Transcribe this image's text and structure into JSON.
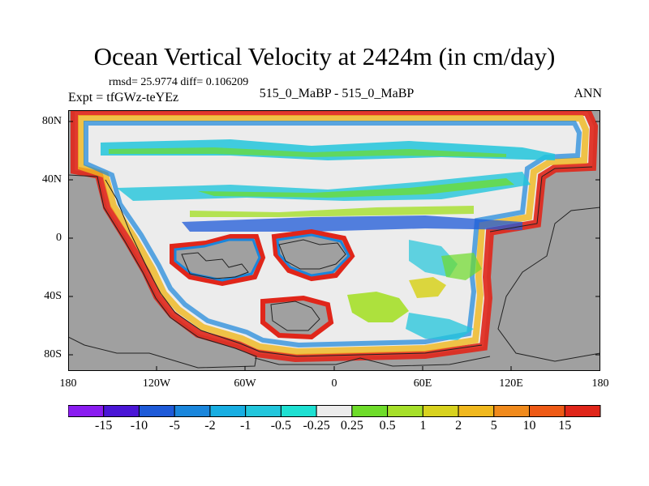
{
  "title": "Ocean Vertical Velocity at 2424m (in cm/day)",
  "stats": "rmsd= 25.9774 diff= 0.106209",
  "expt": "Expt = tfGWz-teYEz",
  "center_label": "515_0_MaBP - 515_0_MaBP",
  "season": "ANN",
  "y_ticks": [
    "80N",
    "40N",
    "0",
    "40S",
    "80S"
  ],
  "x_ticks": [
    "180",
    "120W",
    "60W",
    "0",
    "60E",
    "120E",
    "180"
  ],
  "colorbar": {
    "labels": [
      "-15",
      "-10",
      "-5",
      "-2",
      "-1",
      "-0.5",
      "-0.25",
      "0.25",
      "0.5",
      "1",
      "2",
      "5",
      "10",
      "15"
    ],
    "colors": [
      "#8a1cf0",
      "#4a16d6",
      "#1e5ad8",
      "#1a86dc",
      "#18aee2",
      "#22c6dc",
      "#1ee0d2",
      "#ececec",
      "#6edc2a",
      "#a6e02a",
      "#d8d21e",
      "#f0b81e",
      "#f08a1c",
      "#ee5a16",
      "#e0261a"
    ]
  },
  "colors": {
    "land": "#a0a0a0",
    "ocean_neutral": "#ececec",
    "coast": "#222222"
  }
}
